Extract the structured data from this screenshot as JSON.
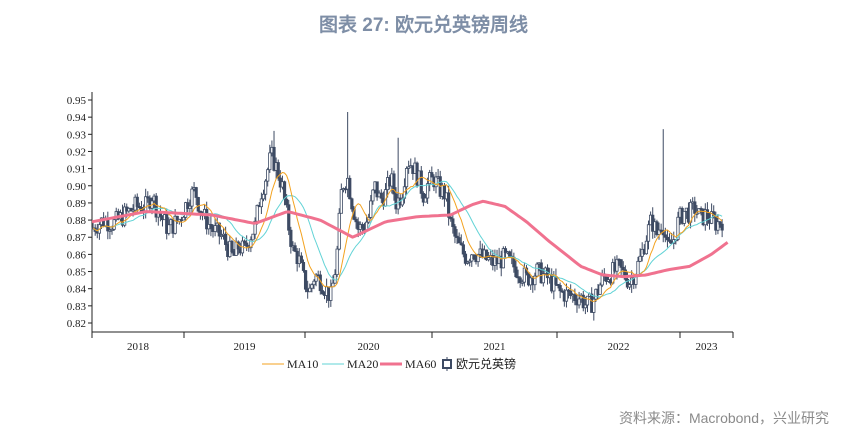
{
  "title": "图表 27: 欧元兑英镑周线",
  "source": "资料来源：Macrobond，兴业研究",
  "colors": {
    "candle": "#3d4a63",
    "ma10": "#f3a21f",
    "ma20": "#62d3d6",
    "ma60": "#f0728f",
    "title": "#7e8ea6"
  },
  "chart_data": {
    "type": "candlestick",
    "title": "",
    "xlabel": "",
    "ylabel": "",
    "ylim": [
      0.815,
      0.955
    ],
    "y_ticks": [
      "0.95",
      "0.94",
      "0.93",
      "0.92",
      "0.91",
      "0.90",
      "0.89",
      "0.88",
      "0.87",
      "0.86",
      "0.85",
      "0.84",
      "0.83",
      "0.82"
    ],
    "x_ticks": [
      "2018",
      "2019",
      "2020",
      "2021",
      "2022",
      "2023"
    ],
    "xlim": [
      2017.5,
      2023.4
    ],
    "grid": false,
    "legend_position": "bottom",
    "legend": [
      "MA10",
      "MA20",
      "MA60",
      "欧元兑英镑"
    ],
    "close_path": [
      [
        2017.5,
        0.875
      ],
      [
        2017.6,
        0.88
      ],
      [
        2017.7,
        0.878
      ],
      [
        2017.8,
        0.883
      ],
      [
        2017.9,
        0.888
      ],
      [
        2018.0,
        0.888
      ],
      [
        2018.05,
        0.895
      ],
      [
        2018.1,
        0.886
      ],
      [
        2018.2,
        0.875
      ],
      [
        2018.3,
        0.88
      ],
      [
        2018.4,
        0.894
      ],
      [
        2018.45,
        0.897
      ],
      [
        2018.5,
        0.885
      ],
      [
        2018.6,
        0.875
      ],
      [
        2018.7,
        0.87
      ],
      [
        2018.8,
        0.858
      ],
      [
        2018.85,
        0.865
      ],
      [
        2018.9,
        0.862
      ],
      [
        2018.95,
        0.87
      ],
      [
        2019.0,
        0.876
      ],
      [
        2019.05,
        0.895
      ],
      [
        2019.1,
        0.905
      ],
      [
        2019.15,
        0.918
      ],
      [
        2019.2,
        0.91
      ],
      [
        2019.25,
        0.9
      ],
      [
        2019.3,
        0.88
      ],
      [
        2019.35,
        0.862
      ],
      [
        2019.4,
        0.858
      ],
      [
        2019.45,
        0.845
      ],
      [
        2019.5,
        0.838
      ],
      [
        2019.55,
        0.848
      ],
      [
        2019.6,
        0.845
      ],
      [
        2019.65,
        0.84
      ],
      [
        2019.7,
        0.835
      ],
      [
        2019.75,
        0.856
      ],
      [
        2019.8,
        0.9
      ],
      [
        2019.85,
        0.905
      ],
      [
        2019.9,
        0.888
      ],
      [
        2019.95,
        0.875
      ],
      [
        2020.0,
        0.876
      ],
      [
        2020.05,
        0.882
      ],
      [
        2020.1,
        0.9
      ],
      [
        2020.15,
        0.892
      ],
      [
        2020.2,
        0.895
      ],
      [
        2020.25,
        0.905
      ],
      [
        2020.3,
        0.89
      ],
      [
        2020.35,
        0.895
      ],
      [
        2020.4,
        0.915
      ],
      [
        2020.45,
        0.912
      ],
      [
        2020.5,
        0.905
      ],
      [
        2020.55,
        0.895
      ],
      [
        2020.6,
        0.902
      ],
      [
        2020.65,
        0.904
      ],
      [
        2020.7,
        0.898
      ],
      [
        2020.75,
        0.895
      ],
      [
        2020.8,
        0.878
      ],
      [
        2020.85,
        0.868
      ],
      [
        2020.9,
        0.862
      ],
      [
        2020.95,
        0.858
      ],
      [
        2021.0,
        0.862
      ],
      [
        2021.1,
        0.858
      ],
      [
        2021.2,
        0.855
      ],
      [
        2021.3,
        0.858
      ],
      [
        2021.4,
        0.852
      ],
      [
        2021.5,
        0.846
      ],
      [
        2021.6,
        0.85
      ],
      [
        2021.7,
        0.846
      ],
      [
        2021.8,
        0.838
      ],
      [
        2021.9,
        0.836
      ],
      [
        2022.0,
        0.835
      ],
      [
        2022.05,
        0.83
      ],
      [
        2022.1,
        0.832
      ],
      [
        2022.15,
        0.838
      ],
      [
        2022.2,
        0.846
      ],
      [
        2022.25,
        0.848
      ],
      [
        2022.3,
        0.85
      ],
      [
        2022.35,
        0.852
      ],
      [
        2022.4,
        0.848
      ],
      [
        2022.45,
        0.844
      ],
      [
        2022.5,
        0.85
      ],
      [
        2022.55,
        0.858
      ],
      [
        2022.6,
        0.87
      ],
      [
        2022.65,
        0.88
      ],
      [
        2022.7,
        0.872
      ],
      [
        2022.75,
        0.88
      ],
      [
        2022.8,
        0.862
      ],
      [
        2022.85,
        0.868
      ],
      [
        2022.9,
        0.88
      ],
      [
        2022.95,
        0.885
      ],
      [
        2023.0,
        0.884
      ],
      [
        2023.05,
        0.887
      ],
      [
        2023.1,
        0.881
      ],
      [
        2023.15,
        0.883
      ],
      [
        2023.2,
        0.88
      ],
      [
        2023.25,
        0.878
      ],
      [
        2023.3,
        0.88
      ]
    ],
    "spikes": [
      [
        2019.85,
        0.943
      ],
      [
        2022.75,
        0.933
      ],
      [
        2019.18,
        0.932
      ],
      [
        2020.32,
        0.928
      ]
    ],
    "ma60_path": [
      [
        2017.5,
        0.879
      ],
      [
        2018.0,
        0.885
      ],
      [
        2018.3,
        0.884
      ],
      [
        2018.6,
        0.883
      ],
      [
        2019.0,
        0.878
      ],
      [
        2019.3,
        0.885
      ],
      [
        2019.6,
        0.88
      ],
      [
        2019.9,
        0.87
      ],
      [
        2020.2,
        0.879
      ],
      [
        2020.5,
        0.882
      ],
      [
        2020.8,
        0.883
      ],
      [
        2021.0,
        0.889
      ],
      [
        2021.1,
        0.891
      ],
      [
        2021.3,
        0.888
      ],
      [
        2021.5,
        0.879
      ],
      [
        2021.7,
        0.868
      ],
      [
        2021.9,
        0.858
      ],
      [
        2022.0,
        0.853
      ],
      [
        2022.2,
        0.848
      ],
      [
        2022.4,
        0.847
      ],
      [
        2022.6,
        0.848
      ],
      [
        2022.8,
        0.851
      ],
      [
        2023.0,
        0.853
      ],
      [
        2023.2,
        0.86
      ],
      [
        2023.35,
        0.867
      ]
    ]
  }
}
